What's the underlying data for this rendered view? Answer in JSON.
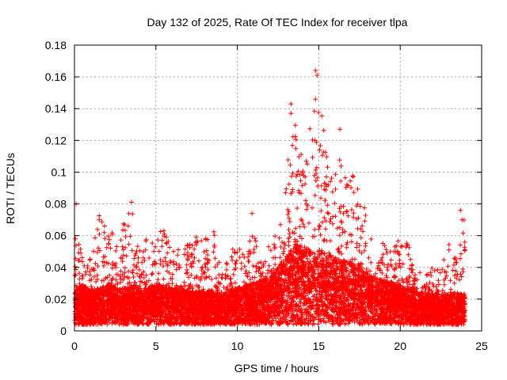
{
  "chart_data": {
    "type": "scatter",
    "title": "Day 132 of 2025, Rate Of TEC Index for receiver tlpa",
    "xlabel": "GPS time / hours",
    "ylabel": "ROTI / TECUs",
    "xlim": [
      0,
      25
    ],
    "ylim": [
      0,
      0.18
    ],
    "xticks": [
      "0",
      "5",
      "10",
      "15",
      "20",
      "25"
    ],
    "yticks": [
      "0",
      "0.02",
      "0.04",
      "0.06",
      "0.08",
      "0.1",
      "0.12",
      "0.14",
      "0.16",
      "0.18"
    ],
    "grid": true,
    "marker": "plus",
    "series_color": "#ff0000",
    "envelope": {
      "x": [
        0,
        0.5,
        1,
        1.5,
        2,
        2.5,
        3,
        3.5,
        4,
        4.5,
        5,
        5.5,
        6,
        6.5,
        7,
        7.5,
        8,
        8.5,
        9,
        9.5,
        10,
        10.5,
        11,
        11.5,
        12,
        12.5,
        13,
        13.5,
        14,
        14.5,
        15,
        15.5,
        16,
        16.5,
        17,
        17.5,
        18,
        18.5,
        19,
        19.5,
        20,
        20.5,
        21,
        21.5,
        22,
        22.5,
        23,
        23.5,
        24
      ],
      "median": [
        0.015,
        0.016,
        0.014,
        0.015,
        0.016,
        0.016,
        0.015,
        0.016,
        0.015,
        0.015,
        0.016,
        0.016,
        0.015,
        0.015,
        0.014,
        0.014,
        0.014,
        0.014,
        0.013,
        0.014,
        0.015,
        0.016,
        0.017,
        0.018,
        0.019,
        0.022,
        0.026,
        0.03,
        0.03,
        0.028,
        0.028,
        0.027,
        0.026,
        0.025,
        0.024,
        0.022,
        0.02,
        0.019,
        0.018,
        0.017,
        0.016,
        0.015,
        0.014,
        0.013,
        0.013,
        0.013,
        0.013,
        0.013,
        0.013
      ],
      "max": [
        0.08,
        0.045,
        0.05,
        0.073,
        0.065,
        0.06,
        0.068,
        0.081,
        0.055,
        0.06,
        0.06,
        0.066,
        0.05,
        0.055,
        0.055,
        0.06,
        0.058,
        0.067,
        0.04,
        0.045,
        0.06,
        0.05,
        0.074,
        0.045,
        0.055,
        0.075,
        0.1,
        0.143,
        0.12,
        0.13,
        0.164,
        0.11,
        0.127,
        0.11,
        0.1,
        0.09,
        0.07,
        0.06,
        0.055,
        0.05,
        0.063,
        0.055,
        0.04,
        0.035,
        0.04,
        0.04,
        0.055,
        0.045,
        0.076
      ]
    },
    "notable_points": [
      {
        "x": 0.1,
        "y": 0.08
      },
      {
        "x": 3.5,
        "y": 0.081
      },
      {
        "x": 10.9,
        "y": 0.074
      },
      {
        "x": 13.3,
        "y": 0.143
      },
      {
        "x": 13.3,
        "y": 0.137
      },
      {
        "x": 14.8,
        "y": 0.164
      },
      {
        "x": 14.9,
        "y": 0.161
      },
      {
        "x": 14.8,
        "y": 0.146
      },
      {
        "x": 16.3,
        "y": 0.127
      },
      {
        "x": 23.7,
        "y": 0.076
      },
      {
        "x": 23.8,
        "y": 0.07
      }
    ]
  }
}
